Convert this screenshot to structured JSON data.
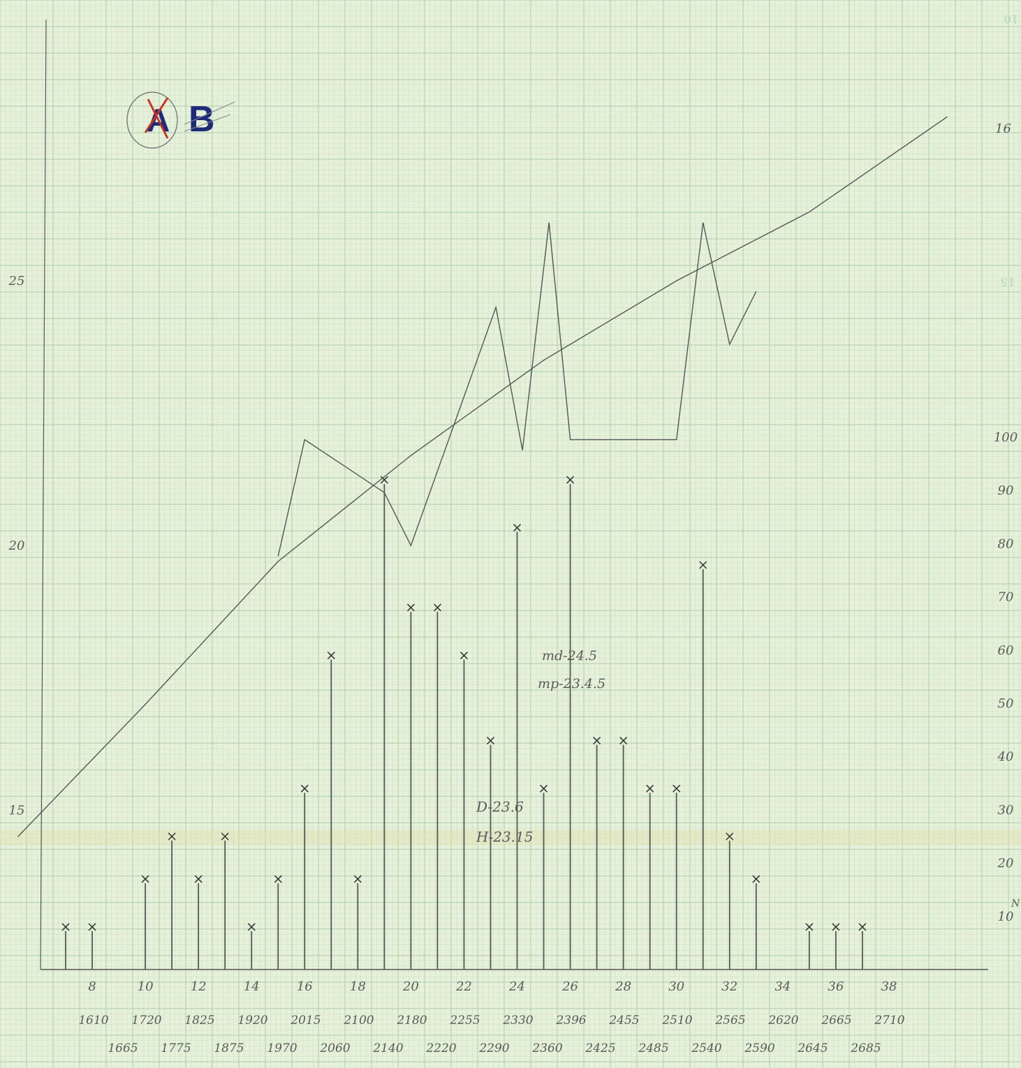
{
  "sheet": {
    "corner_label_crossed": "A",
    "corner_label_active": "B",
    "grid_numbers": [
      "10",
      "16",
      "15"
    ],
    "annotations": [
      "md-24.5",
      "mp-23.4.5",
      "D-23.6",
      "H-23.15"
    ],
    "colors": {
      "paper": "#e6f1d8",
      "grid_fine": "#c5dfcb",
      "grid_major": "#a9cdb4",
      "pencil": "#555555",
      "ink_blue": "#1e2a7a",
      "ink_red": "#c8331f"
    }
  },
  "chart_data": [
    {
      "type": "bar",
      "title": "",
      "xlabel": "",
      "ylabel": "N",
      "x": [
        7,
        8,
        10,
        11,
        12,
        13,
        14,
        15,
        16,
        17,
        18,
        19,
        20,
        21,
        22,
        23,
        24,
        25,
        26,
        27,
        28,
        29,
        30,
        31,
        32,
        33,
        35,
        36,
        37
      ],
      "values": [
        8,
        8,
        17,
        25,
        17,
        25,
        8,
        17,
        34,
        59,
        17,
        92,
        68,
        68,
        59,
        43,
        83,
        34,
        92,
        43,
        43,
        34,
        34,
        76,
        25,
        17,
        8,
        8,
        8
      ],
      "marker": "x",
      "xlim": [
        5.2,
        40.8
      ],
      "ylim": [
        0,
        100
      ],
      "x_ticks": [
        "8",
        "10",
        "12",
        "14",
        "16",
        "18",
        "20",
        "22",
        "24",
        "26",
        "28",
        "30",
        "32",
        "34",
        "36",
        "38"
      ],
      "y_ticks": [
        "10",
        "20",
        "30",
        "40",
        "50",
        "60",
        "70",
        "80",
        "90",
        "100"
      ],
      "size_rows": {
        "row1": [
          "1610",
          "1720",
          "1825",
          "1920",
          "2015",
          "2100",
          "2180",
          "2255",
          "2330",
          "2396",
          "2455",
          "2510",
          "2565",
          "2620",
          "2665",
          "2710"
        ],
        "row2": [
          "1665",
          "1775",
          "1875",
          "1970",
          "2060",
          "2140",
          "2220",
          "2290",
          "2360",
          "2425",
          "2485",
          "2540",
          "2590",
          "2645",
          "2685"
        ]
      },
      "legend": "none",
      "grid": true
    },
    {
      "type": "line",
      "title": "",
      "series": [
        {
          "x": [
            15,
            16,
            19,
            20,
            23.2,
            24.2,
            25.2,
            26,
            30,
            31,
            32,
            33
          ],
          "values": [
            19.8,
            22.0,
            21.0,
            20.0,
            24.5,
            21.8,
            26.1,
            22.0,
            22.0,
            26.1,
            23.8,
            24.8
          ]
        },
        {
          "x": [
            5.2,
            10,
            15,
            20,
            25,
            30,
            35,
            40.2
          ],
          "values": [
            14.5,
            17.0,
            19.7,
            21.7,
            23.5,
            25.0,
            26.3,
            28.1
          ]
        }
      ],
      "x_axis": "shared with bar histogram",
      "xlim": [
        5.2,
        40.8
      ],
      "ylim": [
        13,
        30
      ],
      "y_ticks": [
        "15",
        "20",
        "25"
      ],
      "legend": "none",
      "grid": true
    }
  ]
}
